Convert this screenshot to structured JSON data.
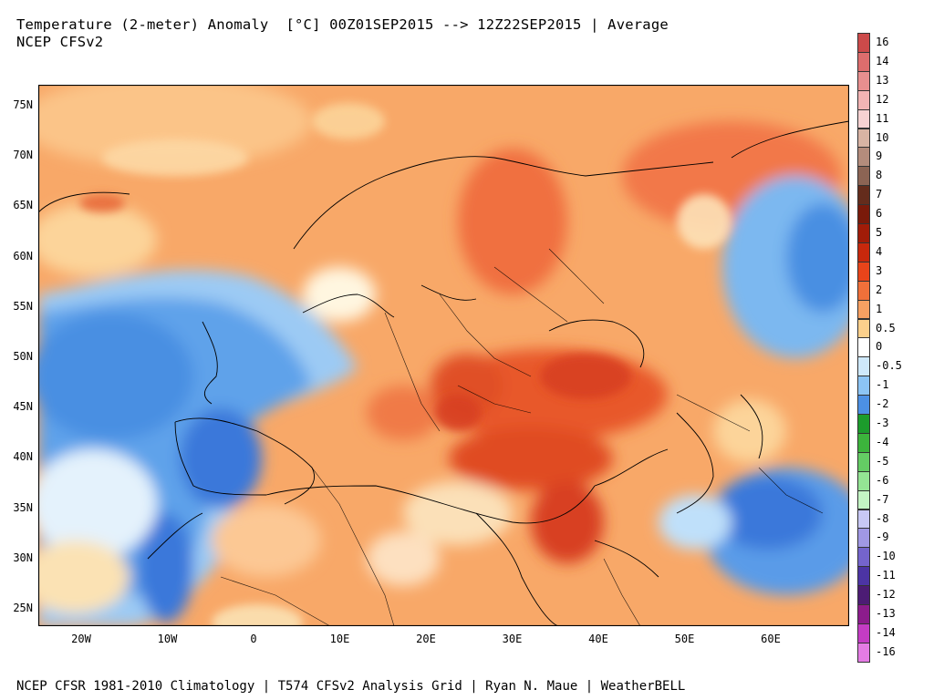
{
  "header": {
    "title_line1": "Temperature (2-meter) Anomaly  [°C] 00Z01SEP2015 --> 12Z22SEP2015 | Average",
    "title_line2": "NCEP CFSv2"
  },
  "footer": {
    "credits": "NCEP CFSR 1981-2010 Climatology | T574 CFSv2 Analysis Grid | Ryan N. Maue | WeatherBELL"
  },
  "axes": {
    "lat_labels": [
      "75N",
      "70N",
      "65N",
      "60N",
      "55N",
      "50N",
      "45N",
      "40N",
      "35N",
      "30N",
      "25N"
    ],
    "lon_labels": [
      "20W",
      "10W",
      "0",
      "10E",
      "20E",
      "30E",
      "40E",
      "50E",
      "60E"
    ]
  },
  "colorbar": {
    "labels": [
      "16",
      "14",
      "13",
      "12",
      "11",
      "10",
      "9",
      "8",
      "7",
      "6",
      "5",
      "4",
      "3",
      "2",
      "1",
      "0.5",
      "0",
      "-0.5",
      "-1",
      "-2",
      "-3",
      "-4",
      "-5",
      "-6",
      "-7",
      "-8",
      "-9",
      "-10",
      "-11",
      "-12",
      "-13",
      "-14",
      "-16"
    ],
    "colors": [
      "#cc4a4a",
      "#dd6d6d",
      "#e88f8f",
      "#f2b4b4",
      "#f6d2d2",
      "#d8b4a4",
      "#b48c7c",
      "#8c6454",
      "#642c1c",
      "#7a1a0a",
      "#a11c08",
      "#c8280c",
      "#e8441a",
      "#f0703a",
      "#f7a062",
      "#fbd08c",
      "#ffffff",
      "#cfe9fb",
      "#8cc4f4",
      "#4c90e4",
      "#1c9c2c",
      "#3cb43c",
      "#64cc64",
      "#94e494",
      "#c4f4c4",
      "#c8c8f4",
      "#a098e4",
      "#7464cc",
      "#4c34a4",
      "#4c1c74",
      "#8c1c8c",
      "#c43cc4",
      "#e47ce4"
    ]
  },
  "map": {
    "description_colors": {
      "ocean_warm": "#f8a86a",
      "deep_warm": "#e8552a",
      "cool": "#5aa0ea",
      "deep_cool": "#2c64d0",
      "neutral": "#ffffff",
      "slight_warm": "#fcd49a",
      "slight_cool": "#bfe0fa"
    }
  }
}
